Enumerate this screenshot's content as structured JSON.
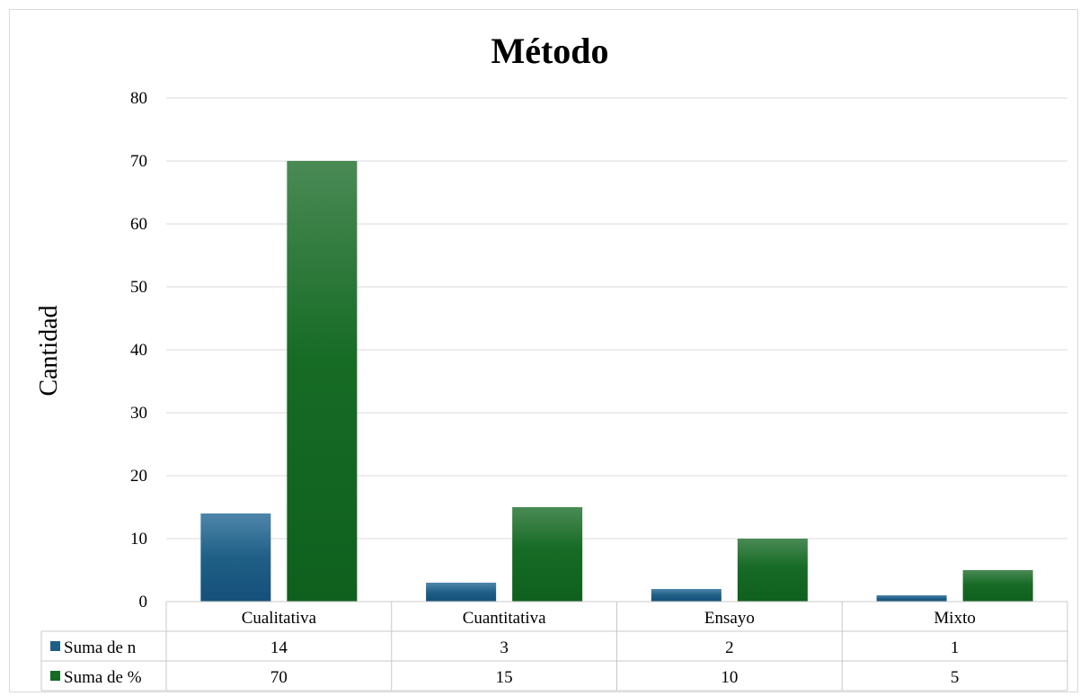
{
  "chart_data": {
    "type": "bar",
    "title": "Método",
    "ylabel": "Cantidad",
    "xlabel": "",
    "categories": [
      "Cualitativa",
      "Cuantitativa",
      "Ensayo",
      "Mixto"
    ],
    "series": [
      {
        "name": "Suma de n",
        "values": [
          14,
          3,
          2,
          1
        ],
        "color": "#1f5f86"
      },
      {
        "name": "Suma de %",
        "values": [
          70,
          15,
          10,
          5
        ],
        "color": "#166b25"
      }
    ],
    "ylim": [
      0,
      80
    ],
    "yticks": [
      0,
      10,
      20,
      30,
      40,
      50,
      60,
      70,
      80
    ],
    "grid": true,
    "legend": "data-table"
  }
}
